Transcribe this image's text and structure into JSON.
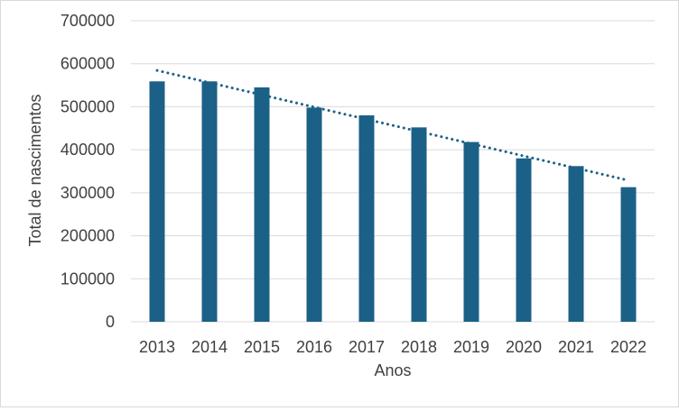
{
  "chart_data": {
    "type": "bar",
    "categories": [
      "2013",
      "2014",
      "2015",
      "2016",
      "2017",
      "2018",
      "2019",
      "2020",
      "2021",
      "2022"
    ],
    "values": [
      559000,
      559000,
      545000,
      498000,
      480000,
      452000,
      418000,
      380000,
      362000,
      313000
    ],
    "xlabel": "Anos",
    "ylabel": "Total de nascimentos",
    "ylim": [
      0,
      700000
    ],
    "yticks": [
      "0",
      "100000",
      "200000",
      "300000",
      "400000",
      "500000",
      "600000",
      "700000"
    ],
    "trendline": {
      "style": "dotted",
      "type": "linear"
    },
    "grid": true,
    "legend": "none",
    "colors": {
      "bar": "#1b6187",
      "trend": "#1b6187",
      "grid": "#d9d9d9"
    }
  }
}
